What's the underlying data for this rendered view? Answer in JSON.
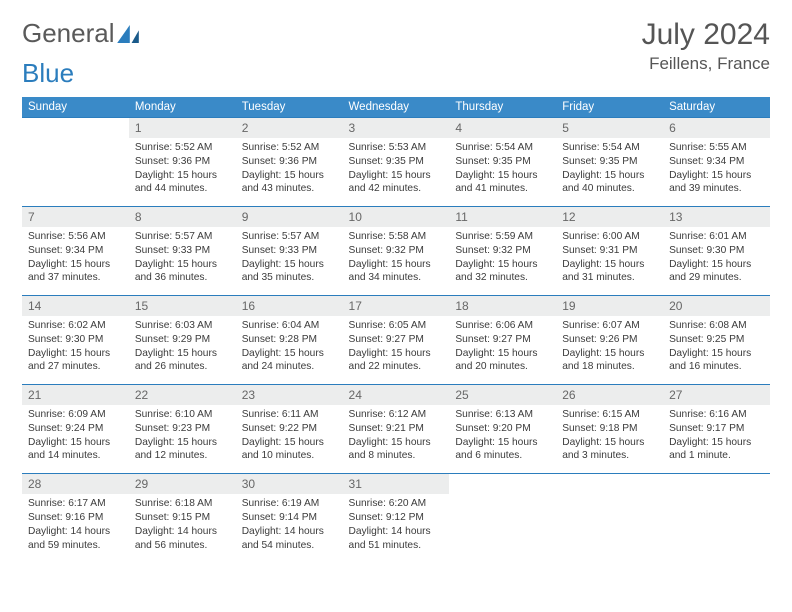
{
  "brand": {
    "part1": "General",
    "part2": "Blue"
  },
  "title": "July 2024",
  "location": "Feillens, France",
  "colors": {
    "header_bg": "#3a8ac8",
    "daynum_bg": "#eceded",
    "border": "#2b7dbd",
    "text": "#3b3b3b"
  },
  "day_names": [
    "Sunday",
    "Monday",
    "Tuesday",
    "Wednesday",
    "Thursday",
    "Friday",
    "Saturday"
  ],
  "weeks": [
    {
      "nums": [
        "",
        "1",
        "2",
        "3",
        "4",
        "5",
        "6"
      ],
      "cells": [
        null,
        {
          "sr": "5:52 AM",
          "ss": "9:36 PM",
          "dl": "15 hours and 44 minutes."
        },
        {
          "sr": "5:52 AM",
          "ss": "9:36 PM",
          "dl": "15 hours and 43 minutes."
        },
        {
          "sr": "5:53 AM",
          "ss": "9:35 PM",
          "dl": "15 hours and 42 minutes."
        },
        {
          "sr": "5:54 AM",
          "ss": "9:35 PM",
          "dl": "15 hours and 41 minutes."
        },
        {
          "sr": "5:54 AM",
          "ss": "9:35 PM",
          "dl": "15 hours and 40 minutes."
        },
        {
          "sr": "5:55 AM",
          "ss": "9:34 PM",
          "dl": "15 hours and 39 minutes."
        }
      ]
    },
    {
      "nums": [
        "7",
        "8",
        "9",
        "10",
        "11",
        "12",
        "13"
      ],
      "cells": [
        {
          "sr": "5:56 AM",
          "ss": "9:34 PM",
          "dl": "15 hours and 37 minutes."
        },
        {
          "sr": "5:57 AM",
          "ss": "9:33 PM",
          "dl": "15 hours and 36 minutes."
        },
        {
          "sr": "5:57 AM",
          "ss": "9:33 PM",
          "dl": "15 hours and 35 minutes."
        },
        {
          "sr": "5:58 AM",
          "ss": "9:32 PM",
          "dl": "15 hours and 34 minutes."
        },
        {
          "sr": "5:59 AM",
          "ss": "9:32 PM",
          "dl": "15 hours and 32 minutes."
        },
        {
          "sr": "6:00 AM",
          "ss": "9:31 PM",
          "dl": "15 hours and 31 minutes."
        },
        {
          "sr": "6:01 AM",
          "ss": "9:30 PM",
          "dl": "15 hours and 29 minutes."
        }
      ]
    },
    {
      "nums": [
        "14",
        "15",
        "16",
        "17",
        "18",
        "19",
        "20"
      ],
      "cells": [
        {
          "sr": "6:02 AM",
          "ss": "9:30 PM",
          "dl": "15 hours and 27 minutes."
        },
        {
          "sr": "6:03 AM",
          "ss": "9:29 PM",
          "dl": "15 hours and 26 minutes."
        },
        {
          "sr": "6:04 AM",
          "ss": "9:28 PM",
          "dl": "15 hours and 24 minutes."
        },
        {
          "sr": "6:05 AM",
          "ss": "9:27 PM",
          "dl": "15 hours and 22 minutes."
        },
        {
          "sr": "6:06 AM",
          "ss": "9:27 PM",
          "dl": "15 hours and 20 minutes."
        },
        {
          "sr": "6:07 AM",
          "ss": "9:26 PM",
          "dl": "15 hours and 18 minutes."
        },
        {
          "sr": "6:08 AM",
          "ss": "9:25 PM",
          "dl": "15 hours and 16 minutes."
        }
      ]
    },
    {
      "nums": [
        "21",
        "22",
        "23",
        "24",
        "25",
        "26",
        "27"
      ],
      "cells": [
        {
          "sr": "6:09 AM",
          "ss": "9:24 PM",
          "dl": "15 hours and 14 minutes."
        },
        {
          "sr": "6:10 AM",
          "ss": "9:23 PM",
          "dl": "15 hours and 12 minutes."
        },
        {
          "sr": "6:11 AM",
          "ss": "9:22 PM",
          "dl": "15 hours and 10 minutes."
        },
        {
          "sr": "6:12 AM",
          "ss": "9:21 PM",
          "dl": "15 hours and 8 minutes."
        },
        {
          "sr": "6:13 AM",
          "ss": "9:20 PM",
          "dl": "15 hours and 6 minutes."
        },
        {
          "sr": "6:15 AM",
          "ss": "9:18 PM",
          "dl": "15 hours and 3 minutes."
        },
        {
          "sr": "6:16 AM",
          "ss": "9:17 PM",
          "dl": "15 hours and 1 minute."
        }
      ]
    },
    {
      "nums": [
        "28",
        "29",
        "30",
        "31",
        "",
        "",
        ""
      ],
      "cells": [
        {
          "sr": "6:17 AM",
          "ss": "9:16 PM",
          "dl": "14 hours and 59 minutes."
        },
        {
          "sr": "6:18 AM",
          "ss": "9:15 PM",
          "dl": "14 hours and 56 minutes."
        },
        {
          "sr": "6:19 AM",
          "ss": "9:14 PM",
          "dl": "14 hours and 54 minutes."
        },
        {
          "sr": "6:20 AM",
          "ss": "9:12 PM",
          "dl": "14 hours and 51 minutes."
        },
        null,
        null,
        null
      ]
    }
  ]
}
